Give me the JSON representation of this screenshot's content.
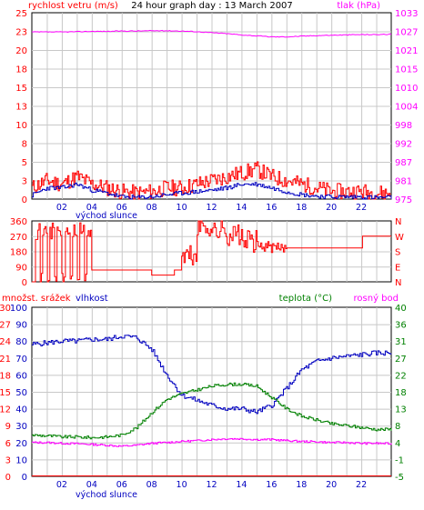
{
  "chart_data": [
    {
      "type": "line",
      "title": "24 hour graph day : 13 March 2007",
      "left_label": "rychlost vetru (m/s)",
      "right_label": "tlak (hPa)",
      "left_ticks": [
        "0",
        "3",
        "5",
        "8",
        "10",
        "13",
        "15",
        "18",
        "20",
        "23",
        "25"
      ],
      "right_ticks": [
        "975",
        "981",
        "987",
        "992",
        "998",
        "1004",
        "1010",
        "1015",
        "1021",
        "1027",
        "1033"
      ],
      "x_ticks": [
        "02",
        "04",
        "06",
        "08",
        "10",
        "12",
        "14",
        "16",
        "18",
        "20",
        "22"
      ],
      "x_annotation": "východ slunce",
      "ylim": [
        0,
        25
      ],
      "ylim_right": [
        975,
        1033
      ],
      "x": [
        0,
        1,
        2,
        3,
        4,
        5,
        6,
        7,
        8,
        9,
        10,
        11,
        12,
        13,
        14,
        15,
        16,
        17,
        18,
        19,
        20,
        21,
        22,
        23,
        24
      ],
      "series": [
        {
          "color": "#ff0000",
          "values": [
            1.5,
            2.5,
            2,
            3,
            2,
            1.5,
            1,
            0.8,
            1,
            1.5,
            1.5,
            2,
            2.5,
            3,
            3.5,
            4,
            3,
            2.5,
            2,
            1.5,
            1,
            1,
            1,
            0.8,
            0.8
          ]
        },
        {
          "color": "#0000c0",
          "values": [
            0.5,
            1.5,
            1.5,
            2,
            1.2,
            0.8,
            0.3,
            0.2,
            0.3,
            0.6,
            0.8,
            1,
            1.2,
            1.5,
            2,
            2,
            1.5,
            1,
            0.6,
            0.4,
            0.3,
            0.3,
            0.3,
            0.2,
            0.2
          ]
        },
        {
          "color": "#ff00ff",
          "values": [
            1027,
            1027,
            1027,
            1027.1,
            1027.2,
            1027.2,
            1027.3,
            1027.3,
            1027.4,
            1027.4,
            1027.3,
            1027.1,
            1026.8,
            1026.5,
            1026.1,
            1025.8,
            1025.5,
            1025.5,
            1025.7,
            1025.9,
            1026,
            1026.1,
            1026.2,
            1026.2,
            1026.3
          ]
        }
      ]
    },
    {
      "type": "line",
      "left_ticks": [
        "0",
        "90",
        "180",
        "270",
        "360"
      ],
      "right_ticks": [
        "N",
        "E",
        "S",
        "W",
        "N"
      ],
      "ylim": [
        0,
        360
      ],
      "x": [
        0,
        1,
        2,
        3,
        3.5,
        4,
        5,
        6,
        7,
        8,
        9,
        9.5,
        10,
        11,
        12,
        13,
        14,
        15,
        16,
        17,
        18,
        19,
        20,
        21,
        22,
        23,
        24
      ],
      "series": [
        {
          "color": "#ff0000",
          "values": [
            300,
            320,
            250,
            330,
            300,
            70,
            70,
            70,
            70,
            40,
            40,
            70,
            150,
            330,
            300,
            280,
            240,
            210,
            200,
            200,
            200,
            200,
            200,
            200,
            270,
            270,
            270
          ]
        }
      ]
    },
    {
      "type": "line",
      "left_label_1": "množst. srážek",
      "left_label_2": "vlhkost",
      "right_label_1": "teplota (°C)",
      "right_label_2": "rosný bod",
      "left_ticks_1": [
        "0",
        "3",
        "6",
        "9",
        "12",
        "15",
        "18",
        "21",
        "24",
        "27",
        "30"
      ],
      "left_ticks_2": [
        "0",
        "10",
        "20",
        "30",
        "40",
        "50",
        "60",
        "70",
        "80",
        "90",
        "100"
      ],
      "right_ticks": [
        "-5",
        "-1",
        "4",
        "8",
        "13",
        "18",
        "22",
        "27",
        "31",
        "36",
        "40"
      ],
      "x_ticks": [
        "02",
        "04",
        "06",
        "08",
        "10",
        "12",
        "14",
        "16",
        "18",
        "20",
        "22"
      ],
      "x_annotation": "východ slunce",
      "ylim": [
        0,
        100
      ],
      "ylim_right": [
        -5,
        40
      ],
      "x": [
        0,
        1,
        2,
        3,
        4,
        5,
        6,
        7,
        8,
        9,
        10,
        11,
        12,
        13,
        14,
        15,
        16,
        17,
        18,
        19,
        20,
        21,
        22,
        23,
        24
      ],
      "series": [
        {
          "name": "vlhkost",
          "color": "#0000c0",
          "values": [
            78,
            79,
            80,
            80,
            81,
            81,
            83,
            82,
            75,
            60,
            48,
            45,
            42,
            40,
            40,
            38,
            42,
            52,
            63,
            68,
            70,
            71,
            72,
            73,
            73
          ]
        },
        {
          "name": "teplota (°C)",
          "color": "#008000",
          "values": [
            6,
            5.8,
            5.5,
            5.5,
            5.3,
            5.5,
            6,
            8,
            12,
            15.5,
            17,
            18,
            19,
            19.5,
            19.5,
            19,
            16,
            13,
            11,
            10,
            9,
            8.5,
            8,
            7.5,
            7.5
          ]
        },
        {
          "name": "rosný bod",
          "color": "#ff00ff",
          "values": [
            4,
            4,
            3.8,
            3.7,
            3.5,
            3.3,
            3,
            3.3,
            3.8,
            4,
            4.3,
            4.5,
            4.8,
            5,
            5,
            4.8,
            4.8,
            4.5,
            4.3,
            4.2,
            4,
            4,
            3.8,
            3.8,
            3.7
          ]
        },
        {
          "name": "množst. srážek",
          "color": "#ff0000",
          "values": [
            0,
            0,
            0,
            0,
            0,
            0,
            0,
            0,
            0,
            0,
            0,
            0,
            0,
            0,
            0,
            0,
            0,
            0,
            0,
            0,
            0,
            0,
            0,
            0,
            0
          ]
        }
      ]
    }
  ],
  "colors": {
    "wind_left": "#ff0000",
    "pressure": "#ff00ff",
    "title": "#000000",
    "direction_right": "#ff0000",
    "humidity": "#0000c0",
    "rain": "#ff0000",
    "temperature": "#008000",
    "dew": "#ff00ff",
    "grid": "#c8c8c8",
    "annotation": "#0000c0"
  }
}
